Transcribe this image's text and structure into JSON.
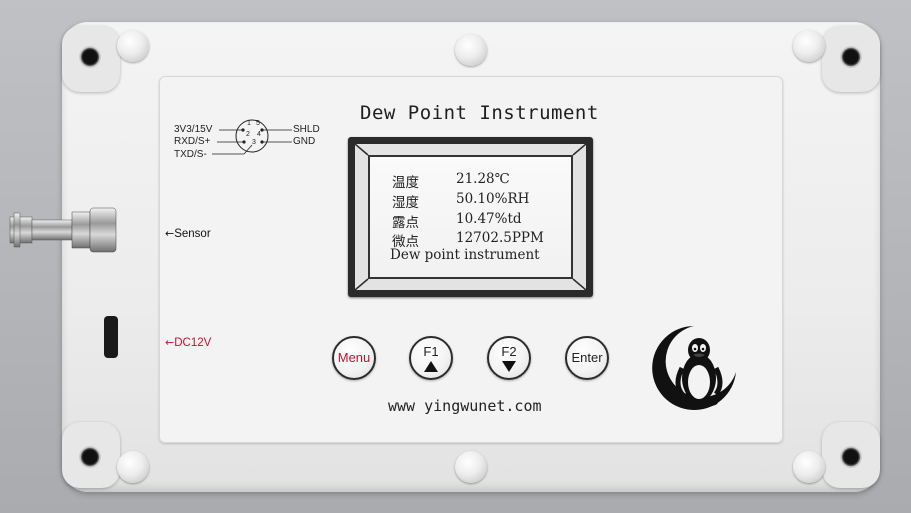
{
  "device": {
    "title": "Dew Point Instrument",
    "website": "www yingwunet.com",
    "colors": {
      "shell": "#ececec",
      "panel": "#f3f3f3",
      "bezel": "#2a2a2a",
      "dc_label": "#c8102e",
      "menu_text": "#c8102e"
    }
  },
  "display": {
    "rows": [
      {
        "label": "温度",
        "value": "21.28℃"
      },
      {
        "label": "湿度",
        "value": "50.10%RH"
      },
      {
        "label": "露点",
        "value": "10.47%td"
      },
      {
        "label": "微点",
        "value": "12702.5PPM"
      }
    ],
    "footer": "Dew point instrument"
  },
  "connector": {
    "left_pins": [
      "3V3/15V",
      "RXD/S+",
      "TXD/S-"
    ],
    "right_pins": [
      "SHLD",
      "GND"
    ],
    "pin_numbers": [
      "1",
      "2",
      "3",
      "4",
      "5"
    ]
  },
  "ports": {
    "sensor_label": "Sensor",
    "power_label": "DC12V"
  },
  "buttons": {
    "menu": "Menu",
    "f1": "F1",
    "f2": "F2",
    "enter": "Enter"
  },
  "icons": [
    "arrow-left-icon",
    "triangle-up-icon",
    "triangle-down-icon",
    "tux-penguin-logo"
  ]
}
